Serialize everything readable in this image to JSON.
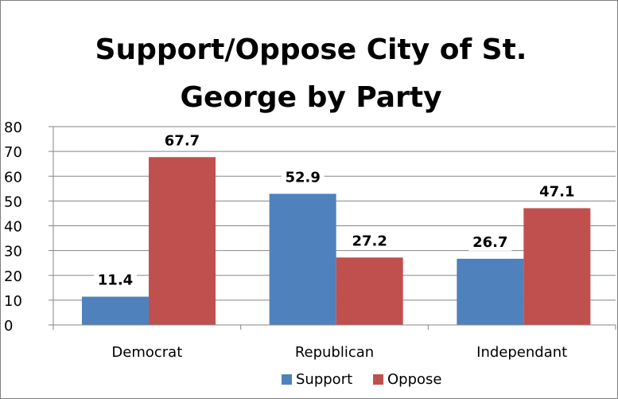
{
  "chart_data": {
    "type": "bar",
    "title": "Support/Oppose City of St. George by Party",
    "title_lines": [
      "Support/Oppose City of St.",
      "George by Party"
    ],
    "categories": [
      "Democrat",
      "Republican",
      "Independant"
    ],
    "series": [
      {
        "name": "Support",
        "values": [
          11.4,
          52.9,
          26.7
        ],
        "color": "#4f81bd"
      },
      {
        "name": "Oppose",
        "values": [
          67.7,
          27.2,
          47.1
        ],
        "color": "#c0504d"
      }
    ],
    "xlabel": "",
    "ylabel": "",
    "ylim": [
      0,
      80
    ],
    "yticks": [
      0,
      10,
      20,
      30,
      40,
      50,
      60,
      70,
      80
    ],
    "grid": true,
    "legend_position": "bottom"
  }
}
